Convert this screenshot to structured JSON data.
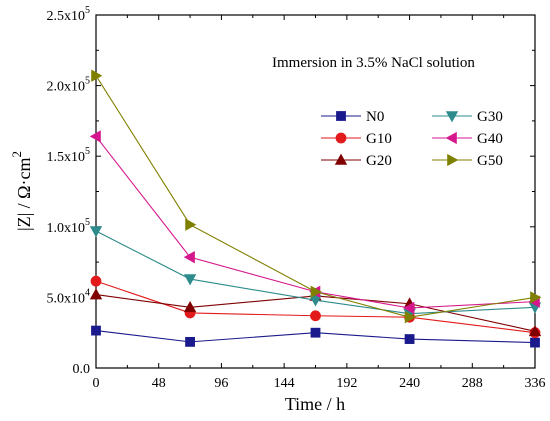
{
  "chart_data": {
    "type": "line",
    "annotation": "Immersion in 3.5% NaCl solution",
    "xlabel": "Time / h",
    "ylabel": "|Z| / Ω·cm",
    "ylabel_superscript": "2",
    "xlim": [
      0,
      336
    ],
    "ylim": [
      0,
      250000
    ],
    "x_ticks": [
      {
        "value": 0,
        "label": "0"
      },
      {
        "value": 48,
        "label": "48"
      },
      {
        "value": 96,
        "label": "96"
      },
      {
        "value": 144,
        "label": "144"
      },
      {
        "value": 192,
        "label": "192"
      },
      {
        "value": 240,
        "label": "240"
      },
      {
        "value": 288,
        "label": "288"
      },
      {
        "value": 336,
        "label": "336"
      }
    ],
    "y_ticks": [
      {
        "value": 0,
        "label": "0.0",
        "exp": ""
      },
      {
        "value": 50000,
        "label": "5.0x10",
        "exp": "4"
      },
      {
        "value": 100000,
        "label": "1.0x10",
        "exp": "5"
      },
      {
        "value": 150000,
        "label": "1.5x10",
        "exp": "5"
      },
      {
        "value": 200000,
        "label": "2.0x10",
        "exp": "5"
      },
      {
        "value": 250000,
        "label": "2.5x10",
        "exp": "5"
      }
    ],
    "legend_placement": "upper-right",
    "x": [
      0,
      72,
      168,
      240,
      336
    ],
    "series": [
      {
        "name": "N0",
        "color": "#1a1a8c",
        "marker": "square",
        "values": [
          26500,
          18500,
          25000,
          20500,
          18000
        ]
      },
      {
        "name": "G10",
        "color": "#e31a1c",
        "marker": "circle",
        "values": [
          61500,
          39000,
          37000,
          36000,
          25000
        ]
      },
      {
        "name": "G20",
        "color": "#800000",
        "marker": "triangle-up",
        "values": [
          52000,
          43000,
          51000,
          45500,
          26000
        ]
      },
      {
        "name": "G30",
        "color": "#2e8b8b",
        "marker": "triangle-down",
        "values": [
          97000,
          63000,
          48000,
          38500,
          43000
        ]
      },
      {
        "name": "G40",
        "color": "#d6168c",
        "marker": "triangle-left",
        "values": [
          164000,
          78500,
          54000,
          42500,
          47000
        ]
      },
      {
        "name": "G50",
        "color": "#808000",
        "marker": "triangle-right",
        "values": [
          207000,
          101500,
          54000,
          36000,
          50000
        ]
      }
    ]
  }
}
